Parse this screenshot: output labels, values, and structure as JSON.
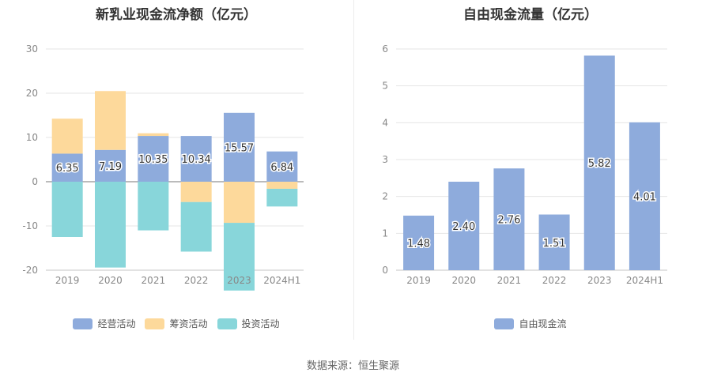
{
  "chart_data": [
    {
      "type": "bar",
      "stacked": true,
      "title": "新乳业现金流净额（亿元）",
      "categories": [
        "2019",
        "2020",
        "2021",
        "2022",
        "2023",
        "2024H1"
      ],
      "series": [
        {
          "name": "经营活动",
          "color": "#8eabdc",
          "values": [
            6.35,
            7.19,
            10.35,
            10.34,
            15.57,
            6.84
          ]
        },
        {
          "name": "筹资活动",
          "color": "#fdd99b",
          "values": [
            7.9,
            13.3,
            0.6,
            -4.6,
            -9.3,
            -1.6
          ]
        },
        {
          "name": "投资活动",
          "color": "#88d6da",
          "values": [
            -12.5,
            -19.4,
            -11.0,
            -11.2,
            -15.3,
            -4.0
          ]
        }
      ],
      "data_labels": [
        "6.35",
        "7.19",
        "10.35",
        "10.34",
        "15.57",
        "6.84"
      ],
      "ylim": [
        -20,
        30
      ],
      "yticks": [
        -20,
        -10,
        0,
        10,
        20,
        30
      ],
      "grid": true,
      "legend": "bottom"
    },
    {
      "type": "bar",
      "title": "自由现金流量（亿元）",
      "categories": [
        "2019",
        "2020",
        "2021",
        "2022",
        "2023",
        "2024H1"
      ],
      "series": [
        {
          "name": "自由现金流",
          "color": "#8eabdc",
          "values": [
            1.48,
            2.4,
            2.76,
            1.51,
            5.82,
            4.01
          ]
        }
      ],
      "data_labels": [
        "1.48",
        "2.40",
        "2.76",
        "1.51",
        "5.82",
        "4.01"
      ],
      "ylim": [
        0,
        6
      ],
      "yticks": [
        0,
        1,
        2,
        3,
        4,
        5,
        6
      ],
      "grid": true,
      "legend": "bottom"
    }
  ],
  "footer": {
    "source": "数据来源：恒生聚源"
  }
}
